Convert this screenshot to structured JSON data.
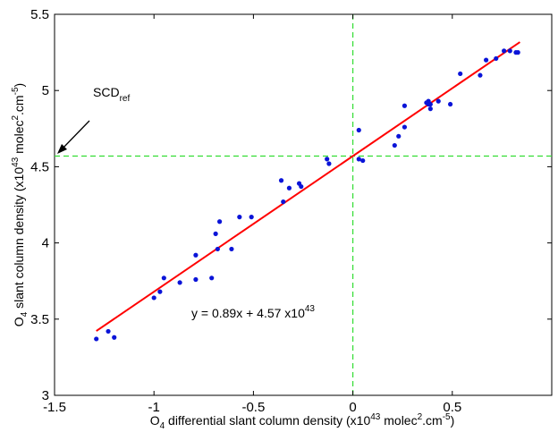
{
  "chart_data": {
    "type": "scatter",
    "title": "",
    "xlabel": {
      "prefix": "O",
      "sub": "4",
      "main": " differential slant column density (x10",
      "exp": "43",
      "unit1": " molec",
      "exp2": "2",
      "unit2": ".cm",
      "exp3": "-5",
      "suffix": ")"
    },
    "ylabel": {
      "prefix": "O",
      "sub": "4",
      "main": " slant column density (x10",
      "exp": "43",
      "unit1": " molec",
      "exp2": "2",
      "unit2": ".cm",
      "exp3": "-5",
      "suffix": ")"
    },
    "xlim": [
      -1.5,
      1.0
    ],
    "ylim": [
      3.0,
      5.5
    ],
    "xticks": [
      -1.5,
      -1,
      -0.5,
      0,
      0.5
    ],
    "xtick_labels": [
      "-1.5",
      "-1",
      "-0.5",
      "0",
      "0.5"
    ],
    "yticks": [
      3,
      3.5,
      4,
      4.5,
      5,
      5.5
    ],
    "ytick_labels": [
      "3",
      "3.5",
      "4",
      "4.5",
      "5",
      "5.5"
    ],
    "grid": false,
    "colors": {
      "points": "#0a14d8",
      "fit": "#ff0000",
      "reference": "#33dd33",
      "axis": "#000000"
    },
    "points": {
      "x": [
        -1.29,
        -1.23,
        -1.2,
        -1.0,
        -0.97,
        -0.95,
        -0.87,
        -0.79,
        -0.79,
        -0.71,
        -0.69,
        -0.68,
        -0.67,
        -0.61,
        -0.57,
        -0.51,
        -0.36,
        -0.35,
        -0.32,
        -0.27,
        -0.26,
        -0.13,
        -0.12,
        0.03,
        0.03,
        0.05,
        0.21,
        0.23,
        0.26,
        0.26,
        0.37,
        0.38,
        0.38,
        0.39,
        0.39,
        0.43,
        0.49,
        0.54,
        0.64,
        0.67,
        0.72,
        0.76,
        0.79,
        0.82,
        0.83
      ],
      "y": [
        3.37,
        3.42,
        3.38,
        3.64,
        3.68,
        3.77,
        3.74,
        3.76,
        3.92,
        3.77,
        4.06,
        3.96,
        4.14,
        3.96,
        4.17,
        4.17,
        4.41,
        4.27,
        4.36,
        4.39,
        4.37,
        4.55,
        4.52,
        4.74,
        4.55,
        4.54,
        4.64,
        4.7,
        4.76,
        4.9,
        4.92,
        4.91,
        4.93,
        4.88,
        4.91,
        4.93,
        4.91,
        5.11,
        5.1,
        5.2,
        5.21,
        5.26,
        5.26,
        5.25,
        5.25
      ]
    },
    "fit_line": {
      "slope": 0.89,
      "intercept": 4.57,
      "x_range": [
        -1.29,
        0.84
      ],
      "equation_label": "y = 0.89x + 4.57 x10",
      "equation_exp": "43"
    },
    "reference_lines": {
      "x": 0,
      "y": 4.57
    },
    "annotation": {
      "text": "SCD",
      "sub": "ref"
    }
  }
}
